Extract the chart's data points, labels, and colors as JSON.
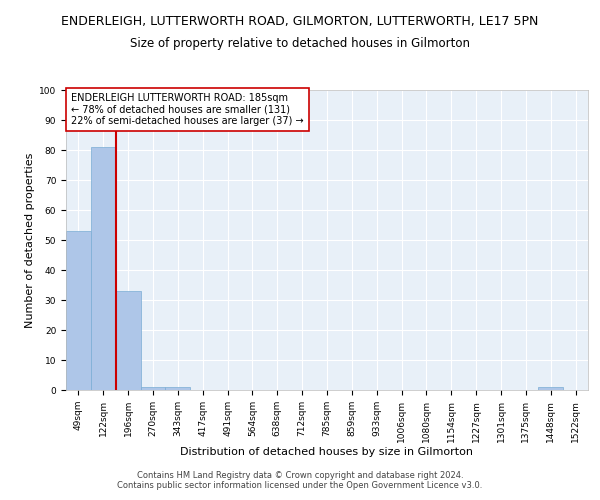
{
  "title": "ENDERLEIGH, LUTTERWORTH ROAD, GILMORTON, LUTTERWORTH, LE17 5PN",
  "subtitle": "Size of property relative to detached houses in Gilmorton",
  "xlabel": "Distribution of detached houses by size in Gilmorton",
  "ylabel": "Number of detached properties",
  "categories": [
    "49sqm",
    "122sqm",
    "196sqm",
    "270sqm",
    "343sqm",
    "417sqm",
    "491sqm",
    "564sqm",
    "638sqm",
    "712sqm",
    "785sqm",
    "859sqm",
    "933sqm",
    "1006sqm",
    "1080sqm",
    "1154sqm",
    "1227sqm",
    "1301sqm",
    "1375sqm",
    "1448sqm",
    "1522sqm"
  ],
  "values": [
    53,
    81,
    33,
    1,
    1,
    0,
    0,
    0,
    0,
    0,
    0,
    0,
    0,
    0,
    0,
    0,
    0,
    0,
    0,
    1,
    0
  ],
  "bar_color": "#aec6e8",
  "bar_edge_color": "#7aadd4",
  "vline_color": "#cc0000",
  "annotation_text": "ENDERLEIGH LUTTERWORTH ROAD: 185sqm\n← 78% of detached houses are smaller (131)\n22% of semi-detached houses are larger (37) →",
  "annotation_box_color": "#ffffff",
  "annotation_box_edge": "#cc0000",
  "ylim": [
    0,
    100
  ],
  "yticks": [
    0,
    10,
    20,
    30,
    40,
    50,
    60,
    70,
    80,
    90,
    100
  ],
  "footer": "Contains HM Land Registry data © Crown copyright and database right 2024.\nContains public sector information licensed under the Open Government Licence v3.0.",
  "background_color": "#e8f0f8",
  "grid_color": "#ffffff",
  "title_fontsize": 9,
  "subtitle_fontsize": 8.5,
  "axis_label_fontsize": 8,
  "tick_fontsize": 6.5,
  "annotation_fontsize": 7,
  "footer_fontsize": 6
}
